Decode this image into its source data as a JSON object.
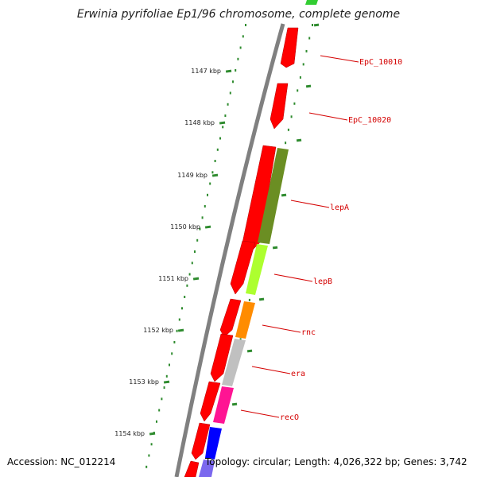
{
  "title": "Erwinia pyrifoliae Ep1/96 chromosome, complete genome",
  "accession": "Accession: NC_012214",
  "stats": "Topology: circular; Length: 4,026,322 bp; Genes: 3,742",
  "colors": {
    "backbone": "#808080",
    "ticks": "#2e8b2e",
    "label_red": "#d40000"
  },
  "ruler": [
    {
      "label": "1147 kbp",
      "kbp": 1147
    },
    {
      "label": "1148 kbp",
      "kbp": 1148
    },
    {
      "label": "1149 kbp",
      "kbp": 1149
    },
    {
      "label": "1150 kbp",
      "kbp": 1150
    },
    {
      "label": "1151 kbp",
      "kbp": 1151
    },
    {
      "label": "1152 kbp",
      "kbp": 1152
    },
    {
      "label": "1153 kbp",
      "kbp": 1153
    },
    {
      "label": "1154 kbp",
      "kbp": 1154
    }
  ],
  "genes": [
    {
      "name": "EpC_10010",
      "color": "#ff0000"
    },
    {
      "name": "EpC_10020",
      "color": "#ff0000"
    },
    {
      "name": "lepA",
      "color": "#6b8e23"
    },
    {
      "name": "lepB",
      "color": "#adff2f"
    },
    {
      "name": "rnc",
      "color": "#ff8c00"
    },
    {
      "name": "era",
      "color": "#c0c0c0"
    },
    {
      "name": "recO",
      "color": "#ff1493"
    }
  ]
}
